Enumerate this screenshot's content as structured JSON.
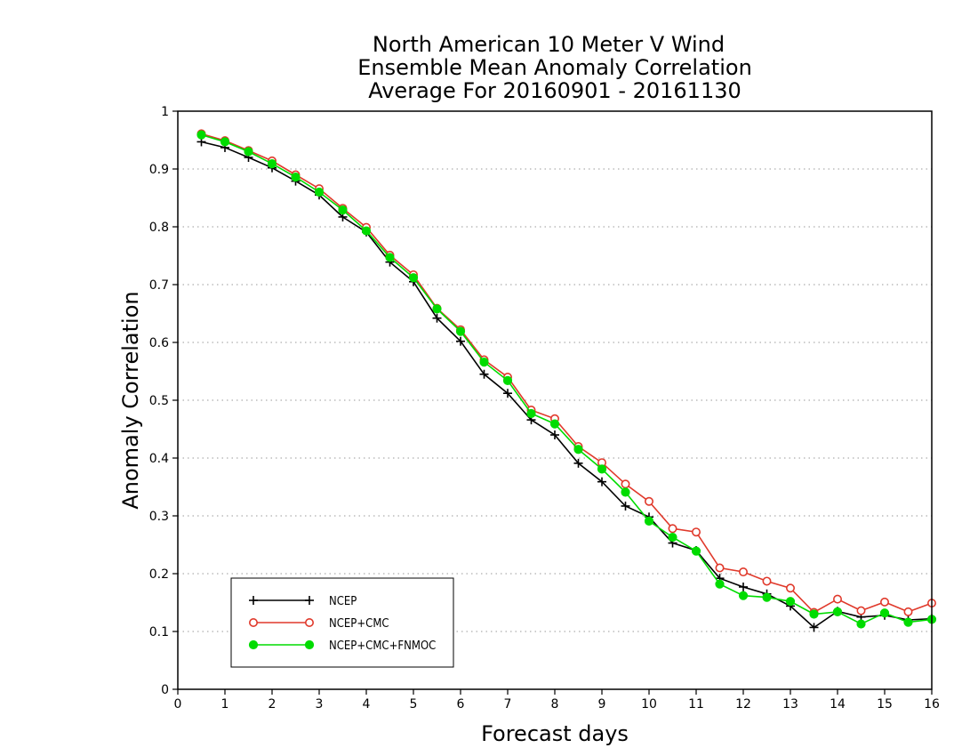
{
  "chart_data": {
    "type": "line",
    "title": [
      "North American 10 Meter V Wind",
      "Ensemble Mean Anomaly Correlation",
      "Average For 20160901 - 20161130"
    ],
    "xlabel": "Forecast days",
    "ylabel": "Anomaly Correlation",
    "xlim": [
      0,
      16
    ],
    "ylim": [
      0,
      1
    ],
    "xticks": [
      "0",
      "1",
      "2",
      "3",
      "4",
      "5",
      "6",
      "7",
      "8",
      "9",
      "10",
      "11",
      "12",
      "13",
      "14",
      "15",
      "16"
    ],
    "yticks": [
      "0",
      "0.1",
      "0.2",
      "0.3",
      "0.4",
      "0.5",
      "0.6",
      "0.7",
      "0.8",
      "0.9",
      "1"
    ],
    "grid": "horizontal-dotted",
    "legend_position": "bottom-left",
    "x": [
      0.5,
      1,
      1.5,
      2,
      2.5,
      3,
      3.5,
      4,
      4.5,
      5,
      5.5,
      6,
      6.5,
      7,
      7.5,
      8,
      8.5,
      9,
      9.5,
      10,
      10.5,
      11,
      11.5,
      12,
      12.5,
      13,
      13.5,
      14,
      14.5,
      15,
      15.5,
      16
    ],
    "series": [
      {
        "name": "NCEP",
        "color": "#000000",
        "marker": "plus",
        "values": [
          0.947,
          0.937,
          0.92,
          0.902,
          0.879,
          0.855,
          0.817,
          0.791,
          0.739,
          0.705,
          0.642,
          0.602,
          0.545,
          0.512,
          0.466,
          0.44,
          0.391,
          0.359,
          0.317,
          0.298,
          0.253,
          0.24,
          0.192,
          0.177,
          0.165,
          0.144,
          0.107,
          0.135,
          0.125,
          0.128,
          0.12,
          0.122
        ]
      },
      {
        "name": "NCEP+CMC",
        "color": "#e0392b",
        "marker": "open-circle",
        "values": [
          0.961,
          0.949,
          0.932,
          0.914,
          0.89,
          0.866,
          0.832,
          0.799,
          0.751,
          0.717,
          0.659,
          0.622,
          0.57,
          0.54,
          0.483,
          0.468,
          0.42,
          0.392,
          0.355,
          0.325,
          0.278,
          0.272,
          0.21,
          0.203,
          0.187,
          0.175,
          0.133,
          0.156,
          0.136,
          0.151,
          0.134,
          0.149
        ]
      },
      {
        "name": "NCEP+CMC+FNMOC",
        "color": "#00dc00",
        "marker": "filled-circle",
        "values": [
          0.959,
          0.947,
          0.93,
          0.909,
          0.886,
          0.86,
          0.829,
          0.793,
          0.747,
          0.712,
          0.658,
          0.619,
          0.566,
          0.534,
          0.477,
          0.459,
          0.415,
          0.381,
          0.341,
          0.291,
          0.263,
          0.239,
          0.182,
          0.162,
          0.159,
          0.152,
          0.13,
          0.134,
          0.113,
          0.132,
          0.116,
          0.121
        ]
      }
    ]
  }
}
